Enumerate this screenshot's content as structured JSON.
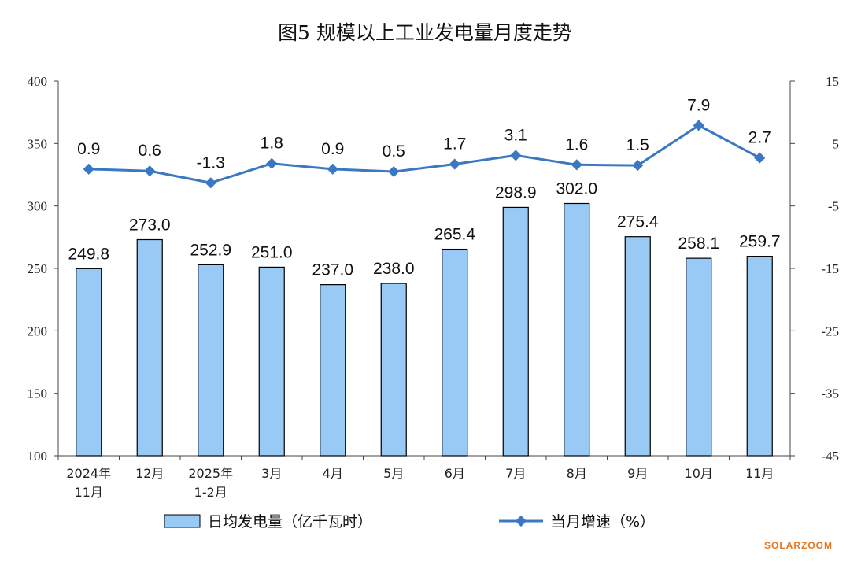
{
  "title": "图5  规模以上工业发电量月度走势",
  "watermark": "SOLARZOOM",
  "colors": {
    "bar_fill": "#99c9f5",
    "bar_stroke": "#000000",
    "line": "#3a78c4"
  },
  "chart_data": {
    "type": "bar",
    "categories": [
      [
        "2024年",
        "11月"
      ],
      [
        "12月"
      ],
      [
        "2025年",
        "1-2月"
      ],
      [
        "3月"
      ],
      [
        "4月"
      ],
      [
        "5月"
      ],
      [
        "6月"
      ],
      [
        "7月"
      ],
      [
        "8月"
      ],
      [
        "9月"
      ],
      [
        "10月"
      ],
      [
        "11月"
      ]
    ],
    "series": [
      {
        "name": "日均发电量（亿千瓦时）",
        "type": "bar",
        "axis": "left",
        "values": [
          249.8,
          273.0,
          252.9,
          251.0,
          237.0,
          238.0,
          265.4,
          298.9,
          302.0,
          275.4,
          258.1,
          259.7
        ],
        "labels": [
          "249.8",
          "273.0",
          "252.9",
          "251.0",
          "237.0",
          "238.0",
          "265.4",
          "298.9",
          "302.0",
          "275.4",
          "258.1",
          "259.7"
        ]
      },
      {
        "name": "当月增速（%）",
        "type": "line",
        "axis": "right",
        "values": [
          0.9,
          0.6,
          -1.3,
          1.8,
          0.9,
          0.5,
          1.7,
          3.1,
          1.6,
          1.5,
          7.9,
          2.7
        ],
        "labels": [
          "0.9",
          "0.6",
          "-1.3",
          "1.8",
          "0.9",
          "0.5",
          "1.7",
          "3.1",
          "1.6",
          "1.5",
          "7.9",
          "2.7"
        ]
      }
    ],
    "y_left": {
      "ylim": [
        100,
        400
      ],
      "ticks": [
        "100",
        "150",
        "200",
        "250",
        "300",
        "350",
        "400"
      ]
    },
    "y_right": {
      "ylim": [
        -45,
        15
      ],
      "ticks": [
        "-45",
        "-35",
        "-25",
        "-15",
        "-5",
        "5",
        "15"
      ]
    },
    "grid": false,
    "legend_position": "bottom"
  }
}
